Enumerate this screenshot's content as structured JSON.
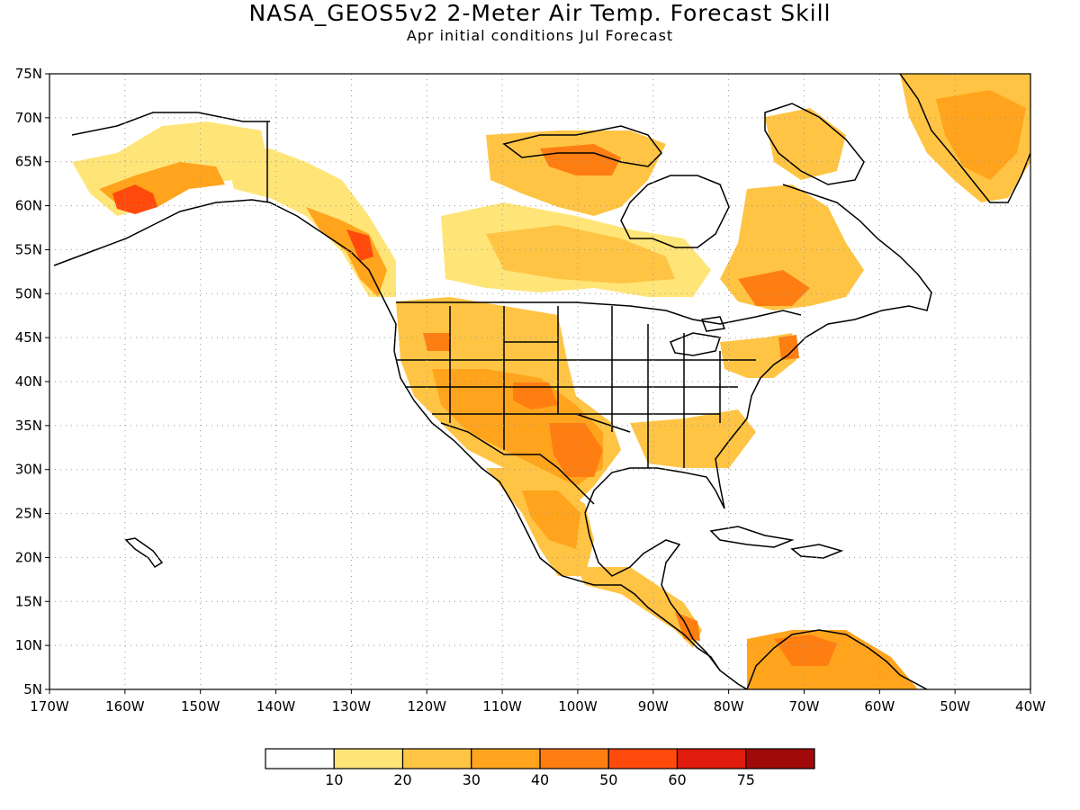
{
  "title": "NASA_GEOS5v2 2-Meter Air Temp. Forecast Skill",
  "subtitle": "Apr initial conditions   Jul Forecast",
  "map": {
    "lat_ticks": [
      "75N",
      "70N",
      "65N",
      "60N",
      "55N",
      "50N",
      "45N",
      "40N",
      "35N",
      "30N",
      "25N",
      "20N",
      "15N",
      "10N",
      "5N"
    ],
    "lon_ticks": [
      "170W",
      "160W",
      "150W",
      "140W",
      "130W",
      "120W",
      "110W",
      "100W",
      "90W",
      "80W",
      "70W",
      "60W",
      "50W",
      "40W"
    ],
    "lat_range": [
      5,
      75
    ],
    "lon_range": [
      -170,
      -40
    ],
    "grid": true,
    "land_outline": "#000000",
    "ocean_color": "#ffffff"
  },
  "colorbar": {
    "labels": [
      "10",
      "20",
      "30",
      "40",
      "50",
      "60",
      "75"
    ],
    "colors": [
      "#ffffff",
      "#ffe578",
      "#ffc444",
      "#ffa41c",
      "#ff7e12",
      "#ff4a0c",
      "#e01c0c",
      "#a00a08"
    ]
  }
}
